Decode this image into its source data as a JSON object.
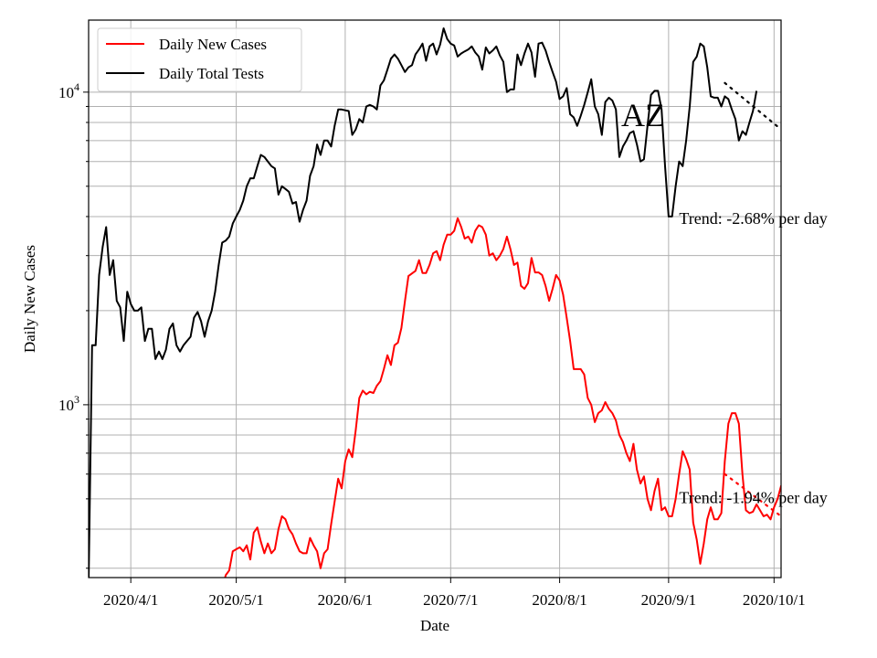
{
  "chart_data": {
    "type": "line",
    "title": "",
    "xlabel": "Date",
    "ylabel": "Daily New Cases",
    "y_scale": "log",
    "ylim": [
      280,
      17000
    ],
    "xlim": [
      "2020-03-20",
      "2020-10-03"
    ],
    "grid": "on (major and minor)",
    "legend_placement": "top-left",
    "state_label": "AZ",
    "x_ticks": [
      "2020-04-01",
      "2020-05-01",
      "2020-06-01",
      "2020-07-01",
      "2020-08-01",
      "2020-09-01",
      "2020-10-01"
    ],
    "x_tick_labels": [
      "2020/4/1",
      "2020/5/1",
      "2020/6/1",
      "2020/7/1",
      "2020/8/1",
      "2020/9/1",
      "2020/10/1"
    ],
    "y_major_ticks": [
      1000,
      10000
    ],
    "y_tick_labels": [
      {
        "base": "10",
        "exp": "3"
      },
      {
        "base": "10",
        "exp": "4"
      }
    ],
    "y_minor_ticks": [
      300,
      400,
      500,
      600,
      700,
      800,
      900,
      2000,
      3000,
      4000,
      5000,
      6000,
      7000,
      8000,
      9000
    ],
    "annotations": [
      {
        "text": "Trend: -2.68% per day",
        "date": "2020-09-04",
        "value": 3950
      },
      {
        "text": "Trend: -1.94% per day",
        "date": "2020-09-04",
        "value": 505
      }
    ],
    "series": [
      {
        "name": "Daily New Cases",
        "color": "#ff0000",
        "start": "2020-04-27",
        "values": [
          260,
          285,
          295,
          340,
          345,
          350,
          340,
          355,
          320,
          390,
          405,
          365,
          335,
          360,
          335,
          345,
          400,
          440,
          430,
          400,
          385,
          360,
          340,
          335,
          335,
          375,
          355,
          340,
          300,
          335,
          345,
          415,
          490,
          580,
          540,
          660,
          720,
          680,
          830,
          1050,
          1110,
          1080,
          1100,
          1090,
          1150,
          1190,
          1300,
          1440,
          1340,
          1550,
          1580,
          1760,
          2150,
          2580,
          2630,
          2680,
          2900,
          2640,
          2640,
          2800,
          3050,
          3100,
          2900,
          3250,
          3500,
          3500,
          3600,
          3950,
          3700,
          3400,
          3450,
          3300,
          3600,
          3750,
          3700,
          3500,
          3000,
          3050,
          2900,
          3000,
          3150,
          3450,
          3150,
          2800,
          2850,
          2400,
          2350,
          2450,
          2950,
          2650,
          2650,
          2600,
          2400,
          2150,
          2350,
          2600,
          2500,
          2250,
          1900,
          1600,
          1300,
          1300,
          1300,
          1250,
          1050,
          1000,
          880,
          940,
          960,
          1020,
          970,
          940,
          890,
          800,
          760,
          700,
          660,
          750,
          620,
          560,
          590,
          500,
          460,
          530,
          580,
          460,
          470,
          440,
          440,
          500,
          600,
          710,
          670,
          620,
          420,
          370,
          310,
          360,
          430,
          470,
          430,
          430,
          450,
          660,
          870,
          940,
          940,
          870,
          600,
          460,
          450,
          455,
          480,
          460,
          440,
          445,
          430,
          470,
          500,
          550,
          560,
          580
        ]
      },
      {
        "name": "Daily Total Tests",
        "color": "#000000",
        "start": "2020-03-20",
        "values": [
          270,
          1550,
          1550,
          2600,
          3200,
          3700,
          2600,
          2900,
          2150,
          2050,
          1600,
          2300,
          2100,
          2000,
          2000,
          2050,
          1600,
          1750,
          1750,
          1400,
          1480,
          1400,
          1500,
          1750,
          1820,
          1550,
          1480,
          1550,
          1600,
          1650,
          1900,
          1980,
          1850,
          1650,
          1850,
          2000,
          2300,
          2800,
          3300,
          3350,
          3450,
          3800,
          4000,
          4200,
          4500,
          5000,
          5300,
          5300,
          5800,
          6300,
          6200,
          6000,
          5800,
          5700,
          4700,
          5000,
          4900,
          4800,
          4400,
          4450,
          3850,
          4200,
          4500,
          5400,
          5800,
          6800,
          6300,
          7000,
          7000,
          6700,
          7800,
          8800,
          8800,
          8750,
          8700,
          7300,
          7600,
          8200,
          8000,
          9000,
          9100,
          9000,
          8800,
          10500,
          10900,
          11800,
          12800,
          13200,
          12800,
          12200,
          11600,
          12000,
          12200,
          13200,
          13700,
          14300,
          12600,
          14000,
          14300,
          13200,
          14200,
          16000,
          14800,
          14300,
          14100,
          13000,
          13300,
          13500,
          13700,
          14000,
          13400,
          13000,
          11800,
          13900,
          13300,
          13600,
          14000,
          13100,
          12500,
          10000,
          10200,
          10200,
          13200,
          12200,
          13300,
          14300,
          13400,
          11200,
          14300,
          14400,
          13600,
          12500,
          11600,
          10800,
          9500,
          9700,
          10300,
          8500,
          8300,
          7800,
          8400,
          9100,
          10000,
          11000,
          9000,
          8500,
          7300,
          9300,
          9600,
          9400,
          8800,
          6200,
          6700,
          7000,
          7400,
          7500,
          6800,
          6000,
          6100,
          7800,
          9800,
          10100,
          10100,
          8800,
          5800,
          4000,
          4000,
          5000,
          6000,
          5800,
          7000,
          9000,
          12500,
          13000,
          14300,
          14000,
          12000,
          9700,
          9600,
          9600,
          9000,
          9700,
          9500,
          8800,
          8200,
          7000,
          7500,
          7300,
          8000,
          8700,
          10100
        ]
      }
    ],
    "trend_lines": [
      {
        "series": "Daily New Cases",
        "color": "#ff0000",
        "start": "2020-09-17",
        "end": "2020-10-03",
        "value_start": 600,
        "value_end": 440
      },
      {
        "series": "Daily Total Tests",
        "color": "#000000",
        "start": "2020-09-17",
        "end": "2020-10-03",
        "value_start": 10700,
        "value_end": 7600
      }
    ]
  }
}
